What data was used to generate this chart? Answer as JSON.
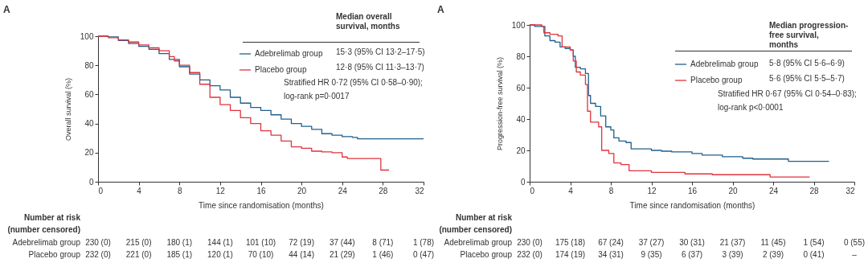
{
  "chart_data": [
    {
      "type": "step",
      "xlabel": "Time since randomisation (months)",
      "ylabel": "Overall survival (%)",
      "xlim": [
        0,
        32
      ],
      "xticks": [
        0,
        4,
        8,
        12,
        16,
        20,
        24,
        28,
        32
      ],
      "ylim": [
        0,
        100
      ],
      "yticks": [
        0,
        20,
        40,
        60,
        80,
        100
      ],
      "grid": false,
      "legend": "top right",
      "series": [
        {
          "name": "Adebrelimab group",
          "color": "#1f5f8b",
          "x": [
            0,
            1,
            2,
            3,
            4,
            5,
            6,
            7,
            8,
            9,
            10,
            11,
            12,
            13,
            14,
            15,
            16,
            17,
            18,
            19,
            20,
            21,
            22,
            23,
            24,
            25,
            25.5,
            28,
            32
          ],
          "values": [
            100,
            99.5,
            97,
            95,
            93,
            91,
            88,
            84,
            79,
            74,
            70,
            66,
            63,
            58,
            54,
            51,
            49,
            46,
            43,
            40,
            38,
            36,
            33,
            32,
            31,
            30.5,
            29.5,
            29.5,
            29.5
          ]
        },
        {
          "name": "Placebo group",
          "color": "#e0333c",
          "x": [
            0,
            1,
            2,
            3,
            4,
            5,
            6,
            7,
            7.5,
            8,
            9,
            10,
            11,
            12,
            13,
            14,
            15,
            16,
            17,
            18,
            19,
            20,
            21,
            22,
            23,
            24,
            24.5,
            27.8,
            28.6
          ],
          "values": [
            100,
            99,
            97.5,
            96,
            94,
            92,
            90,
            86,
            83,
            80,
            75,
            67,
            58,
            53,
            49,
            44,
            40,
            35,
            32,
            28,
            24,
            23,
            21,
            20.5,
            20,
            17,
            16,
            8,
            8
          ]
        }
      ],
      "annotations": [
        "A",
        "Median overall survival, months",
        "15·3 (95% CI 13·2–17·5)",
        "12·8 (95% CI 11·3–13·7)",
        "Stratified HR 0·72 (95% CI 0·58–0·90);",
        "log-rank p=0·0017",
        "Number at risk",
        "(number censored)",
        "Adebrelimab group",
        "Placebo group",
        "230 (0)",
        "215 (0)",
        "180 (1)",
        "144 (1)",
        "101 (10)",
        "72 (19)",
        "37 (44)",
        "8 (71)",
        "1 (78)",
        "232 (0)",
        "221 (0)",
        "185 (1)",
        "120 (1)",
        "70 (10)",
        "44 (14)",
        "21 (29)",
        "1 (46)",
        "0 (47)"
      ]
    },
    {
      "type": "step",
      "xlabel": "Time since randomisation (months)",
      "ylabel": "Progression-free survival (%)",
      "xlim": [
        0,
        32
      ],
      "xticks": [
        0,
        4,
        8,
        12,
        16,
        20,
        24,
        28,
        32
      ],
      "ylim": [
        0,
        100
      ],
      "yticks": [
        0,
        20,
        40,
        60,
        80,
        100
      ],
      "grid": false,
      "legend": "top right",
      "series": [
        {
          "name": "Adebrelimab group",
          "color": "#1f5f8b",
          "x": [
            0,
            0.5,
            1.2,
            1.5,
            2,
            2.5,
            3,
            3.5,
            4,
            4.3,
            4.5,
            5,
            5.5,
            5.8,
            6,
            6.5,
            7,
            7.5,
            8,
            8.3,
            8.8,
            9.5,
            10,
            12,
            13,
            14,
            16,
            17,
            19,
            21,
            22,
            25.5,
            29.5
          ],
          "values": [
            100,
            99,
            99,
            93,
            90,
            89,
            86,
            85,
            84,
            80,
            73,
            72,
            69,
            55,
            50,
            48,
            42,
            35,
            33,
            28,
            26,
            25,
            21,
            20,
            19.5,
            19,
            18,
            17,
            16,
            15,
            14.5,
            13,
            13
          ]
        },
        {
          "name": "Placebo group",
          "color": "#e0333c",
          "x": [
            0,
            1.2,
            1.4,
            2,
            2.8,
            3.2,
            4,
            4.3,
            4.6,
            5,
            5.5,
            5.7,
            6,
            6.8,
            7.1,
            7.8,
            8.3,
            9,
            9.8,
            12,
            15.3,
            18,
            23.7,
            27.6
          ],
          "values": [
            100,
            99,
            95,
            94,
            93,
            86,
            84,
            77,
            70,
            68,
            62,
            45,
            38,
            35,
            20,
            18,
            12,
            11,
            7,
            6,
            5,
            4.5,
            3,
            3
          ]
        }
      ],
      "annotations": [
        "A",
        "Median progression-free survival, months",
        "5·8 (95% CI 5·6–6·9)",
        "5·6 (95% CI 5·5–5·7)",
        "Stratified HR 0·67 (95% CI 0·54–0·83);",
        "log-rank p<0·0001",
        "Number at risk",
        "(number censored)",
        "Adebrelimab group",
        "Placebo group",
        "230 (0)",
        "175 (18)",
        "67 (24)",
        "37 (27)",
        "30 (31)",
        "21 (37)",
        "11 (45)",
        "1 (54)",
        "0 (55)",
        "232 (0)",
        "174 (19)",
        "34 (31)",
        "9 (35)",
        "6 (37)",
        "3 (39)",
        "2 (39)",
        "0 (41)",
        "–"
      ]
    }
  ]
}
